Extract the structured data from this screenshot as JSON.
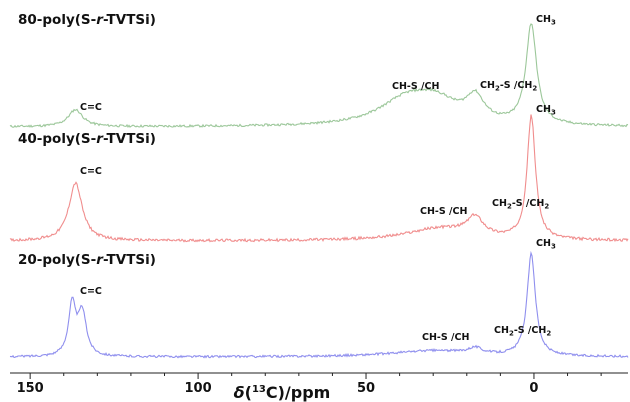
{
  "chart_data": {
    "type": "line",
    "xlabel": {
      "prefix": "δ(",
      "sup": "13",
      "suffix": "C)/ppm"
    },
    "xlim": [
      156,
      -28
    ],
    "x_ticks": [
      150,
      100,
      50,
      0
    ],
    "x_tick_labels": [
      "150",
      "100",
      "50",
      "0"
    ],
    "series": [
      {
        "id": "s80",
        "name": {
          "pre": "80-poly(S-",
          "italic": "r",
          "post": "-TVTSi)"
        },
        "color": "#9cc79a",
        "peaks": [
          {
            "ppm": 136.5,
            "height": 0.17,
            "width": 2.6
          },
          {
            "ppm": 38,
            "height": 0.25,
            "width": 10
          },
          {
            "ppm": 29,
            "height": 0.2,
            "width": 8
          },
          {
            "ppm": 17.5,
            "height": 0.24,
            "width": 3.2
          },
          {
            "ppm": 0.8,
            "height": 1.0,
            "width": 1.9
          }
        ],
        "annotations": [
          {
            "ppm": 136.5,
            "parts": [
              [
                "C=C",
                ""
              ]
            ]
          },
          {
            "ppm": 32,
            "parts": [
              [
                "CH-S /CH",
                ""
              ]
            ]
          },
          {
            "ppm": 12,
            "parts": [
              [
                "CH",
                ""
              ],
              [
                "2",
                "sub"
              ],
              [
                "-S /CH",
                ""
              ],
              [
                "2",
                "sub"
              ]
            ]
          },
          {
            "ppm": 0.8,
            "parts": [
              [
                "CH",
                ""
              ],
              [
                "3",
                "sub"
              ]
            ]
          }
        ]
      },
      {
        "id": "s40",
        "name": {
          "pre": "40-poly(S-",
          "italic": "r",
          "post": "-TVTSi)"
        },
        "color": "#f08d8d",
        "peaks": [
          {
            "ppm": 136.5,
            "height": 0.47,
            "width": 2.4
          },
          {
            "ppm": 28,
            "height": 0.1,
            "width": 12
          },
          {
            "ppm": 17.5,
            "height": 0.15,
            "width": 3
          },
          {
            "ppm": 0.8,
            "height": 1.0,
            "width": 1.5
          }
        ],
        "annotations": [
          {
            "ppm": 136.5,
            "parts": [
              [
                "C=C",
                ""
              ]
            ]
          },
          {
            "ppm": 27,
            "parts": [
              [
                "CH-S /CH",
                ""
              ]
            ]
          },
          {
            "ppm": 10,
            "parts": [
              [
                "CH",
                ""
              ],
              [
                "2",
                "sub"
              ],
              [
                "-S /CH",
                ""
              ],
              [
                "2",
                "sub"
              ]
            ]
          },
          {
            "ppm": 0.8,
            "parts": [
              [
                "CH",
                ""
              ],
              [
                "3",
                "sub"
              ]
            ]
          }
        ]
      },
      {
        "id": "s20",
        "name": {
          "pre": "20-poly(S-",
          "italic": "r",
          "post": "-TVTSi)"
        },
        "color": "#8f8fee",
        "peaks": [
          {
            "ppm": 137.5,
            "height": 0.5,
            "width": 1.3
          },
          {
            "ppm": 134.5,
            "height": 0.42,
            "width": 1.5
          },
          {
            "ppm": 30,
            "height": 0.06,
            "width": 15
          },
          {
            "ppm": 17.5,
            "height": 0.06,
            "width": 2.5
          },
          {
            "ppm": 0.8,
            "height": 1.0,
            "width": 1.5
          }
        ],
        "annotations": [
          {
            "ppm": 136,
            "parts": [
              [
                "C=C",
                ""
              ]
            ]
          },
          {
            "ppm": 26,
            "parts": [
              [
                "CH-S /CH",
                ""
              ]
            ]
          },
          {
            "ppm": 10,
            "parts": [
              [
                "CH",
                ""
              ],
              [
                "2",
                "sub"
              ],
              [
                "-S /CH",
                ""
              ],
              [
                "2",
                "sub"
              ]
            ]
          },
          {
            "ppm": 0.8,
            "parts": [
              [
                "CH",
                ""
              ],
              [
                "3",
                "sub"
              ]
            ]
          }
        ]
      }
    ]
  }
}
